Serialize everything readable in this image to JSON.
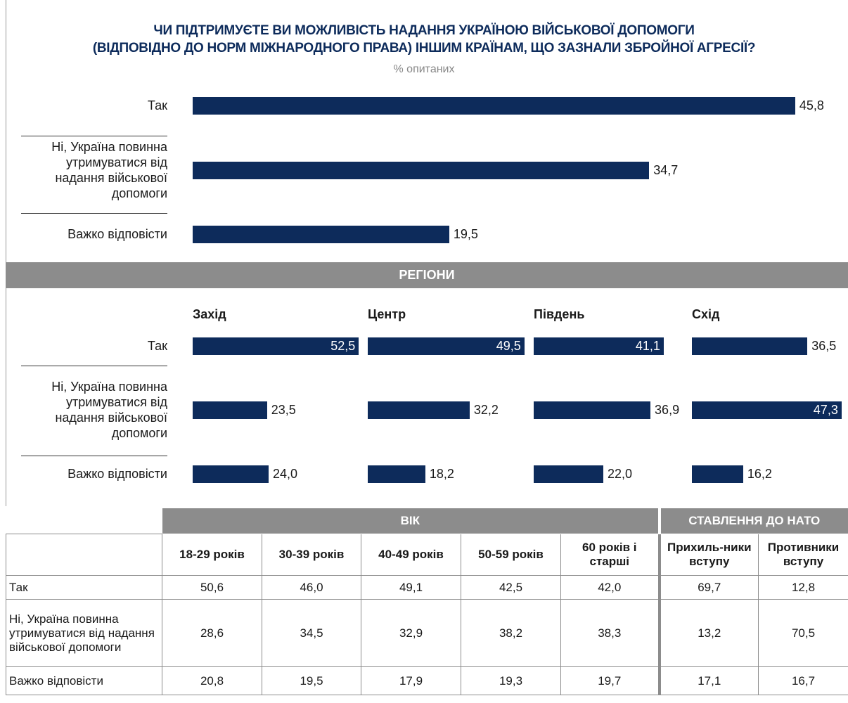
{
  "chart_data": [
    {
      "type": "bar",
      "title": [
        "ЧИ ПІДТРИМУЄТЕ ВИ МОЖЛИВІСТЬ НАДАННЯ УКРАЇНОЮ ВІЙСЬКОВОЇ ДОПОМОГИ",
        "(ВІДПОВІДНО ДО НОРМ МІЖНАРОДНОГО ПРАВА) ІНШИМ КРАЇНАМ, ЩО ЗАЗНАЛИ ЗБРОЙНОЇ АГРЕСІЇ?"
      ],
      "subtitle": "% опитаних",
      "categories": [
        "Так",
        "Ні, Україна повинна утримуватися від надання військової допомоги",
        "Важко відповісти"
      ],
      "values": [
        45.8,
        34.7,
        19.5
      ],
      "value_labels": [
        "45,8",
        "34,7",
        "19,5"
      ],
      "color": "#0d2b5b"
    },
    {
      "type": "bar",
      "title": "РЕГІОНИ",
      "categories": [
        "Так",
        "Ні, Україна повинна утримуватися від надання військової допомоги",
        "Важко відповісти"
      ],
      "color": "#0d2b5b",
      "series": [
        {
          "name": "Захід",
          "values": [
            52.5,
            23.5,
            24.0
          ],
          "value_labels": [
            "52,5",
            "23,5",
            "24,0"
          ]
        },
        {
          "name": "Центр",
          "values": [
            49.5,
            32.2,
            18.2
          ],
          "value_labels": [
            "49,5",
            "32,2",
            "18,2"
          ]
        },
        {
          "name": "Південь",
          "values": [
            41.1,
            36.9,
            22.0
          ],
          "value_labels": [
            "41,1",
            "36,9",
            "22,0"
          ]
        },
        {
          "name": "Схід",
          "values": [
            36.5,
            47.3,
            16.2
          ],
          "value_labels": [
            "36,5",
            "47,3",
            "16,2"
          ]
        }
      ]
    }
  ],
  "table": {
    "groups": [
      "ВІК",
      "СТАВЛЕННЯ ДО НАТО"
    ],
    "columns": [
      "18-29 років",
      "30-39 років",
      "40-49 років",
      "50-59 років",
      "60 років і старші",
      "Прихиль-ники вступу",
      "Противники вступу"
    ],
    "rows": [
      [
        "Так",
        "50,6",
        "46,0",
        "49,1",
        "42,5",
        "42,0",
        "69,7",
        "12,8"
      ],
      [
        "Ні, Україна повинна утримуватися від надання військової допомоги",
        "28,6",
        "34,5",
        "32,9",
        "38,2",
        "38,3",
        "13,2",
        "70,5"
      ],
      [
        "Важко відповісти",
        "20,8",
        "19,5",
        "17,9",
        "19,3",
        "19,7",
        "17,1",
        "16,7"
      ]
    ]
  }
}
